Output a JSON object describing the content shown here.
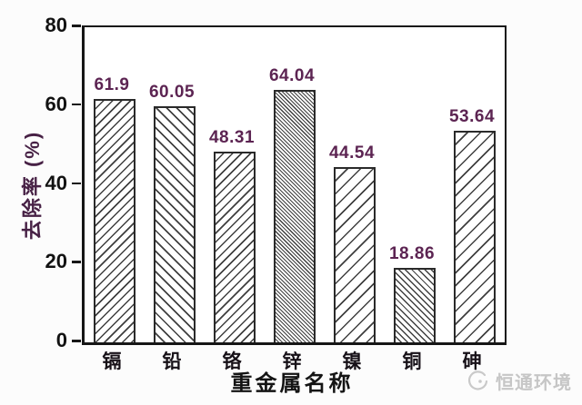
{
  "chart_data": {
    "type": "bar",
    "title": "",
    "categories": [
      "镉",
      "铅",
      "铬",
      "锌",
      "镍",
      "铜",
      "砷"
    ],
    "values": [
      61.9,
      60.05,
      48.31,
      64.04,
      44.54,
      18.86,
      53.64
    ],
    "value_labels": [
      "61.9",
      "60.05",
      "48.31",
      "64.04",
      "44.54",
      "18.86",
      "53.64"
    ],
    "hatches": [
      "/",
      "\\",
      "/",
      "\\\\",
      "/",
      "\\",
      "/"
    ],
    "xlabel": "重金属名称",
    "ylabel": "去除率 (%)",
    "ylim": [
      0,
      80
    ],
    "yticks": [
      0,
      20,
      40,
      60,
      80
    ],
    "grid": false,
    "legend": "none",
    "bar_fill": "#ffffff",
    "hatch_color": "#3f3f3f",
    "value_label_color": "#5c2452",
    "axis_color": "#161616"
  },
  "watermark": {
    "logo": "circle-swirl-logo",
    "text": "恒通环境",
    "color": "#c6c6c6"
  }
}
